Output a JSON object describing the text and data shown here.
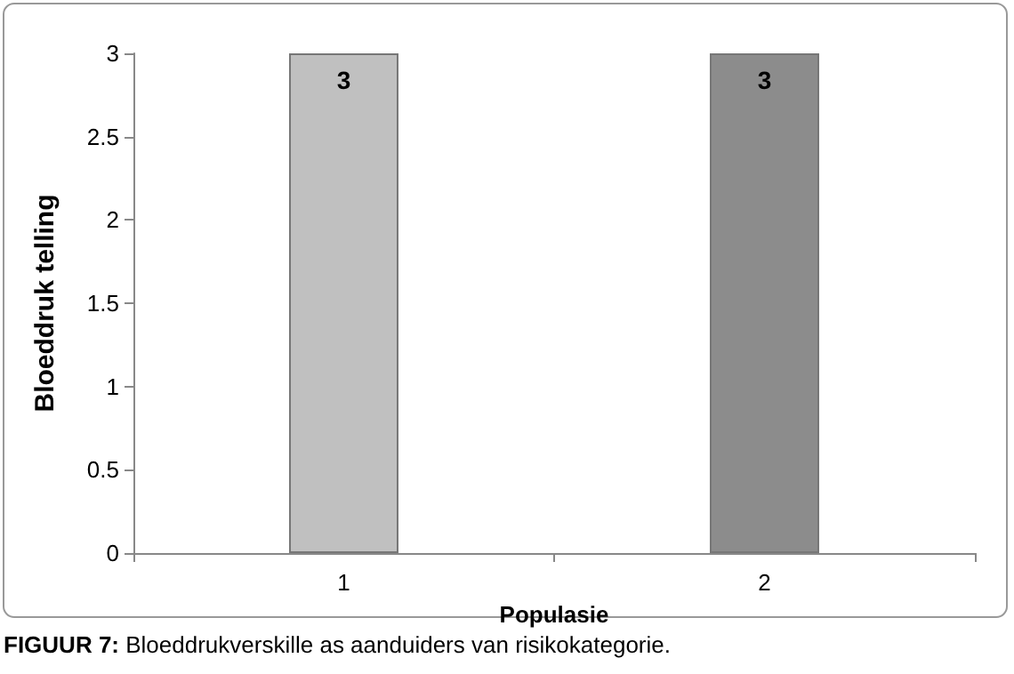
{
  "chart_data": {
    "type": "bar",
    "categories": [
      "1",
      "2"
    ],
    "values": [
      3,
      3
    ],
    "colors": [
      "#c0c0c0",
      "#8c8c8c"
    ],
    "xlabel": "Populasie",
    "ylabel": "Bloeddruk telling",
    "ylim": [
      0,
      3
    ],
    "yticks": [
      0,
      0.5,
      1,
      1.5,
      2,
      2.5,
      3
    ],
    "grid": false,
    "data_labels": true,
    "annotations": [
      "FIGUUR 7: Bloeddrukverskille as aanduiders van risikokategorie."
    ]
  }
}
